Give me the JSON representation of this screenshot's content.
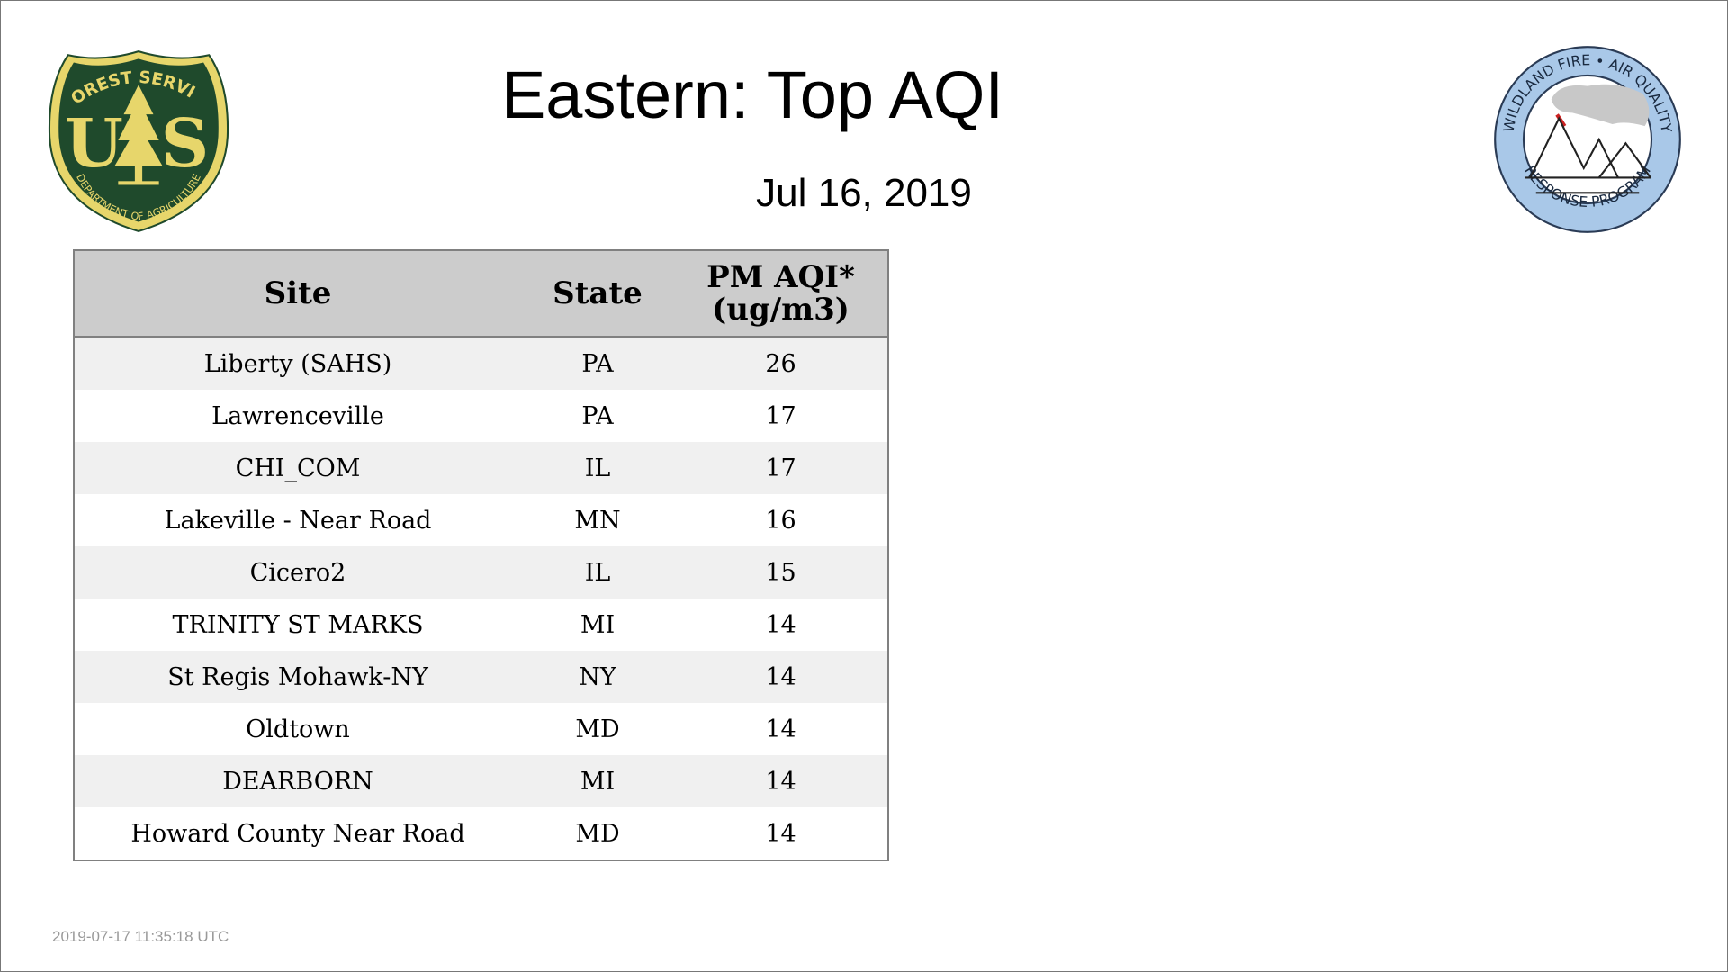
{
  "title": "Eastern: Top AQI",
  "subtitle": "Jul 16, 2019",
  "timestamp": "2019-07-17 11:35:18 UTC",
  "logos": {
    "left": {
      "icon": "forest-service-shield-icon",
      "top_text": "FOREST SERVICE",
      "letters_left": "U",
      "letters_right": "S",
      "bottom_text": "DEPARTMENT OF AGRICULTURE",
      "colors": {
        "green": "#1f4a2c",
        "gold": "#e7d66b"
      }
    },
    "right": {
      "icon": "wildland-fire-air-quality-seal-icon",
      "top_text": "WILDLAND FIRE • AIR QUALITY",
      "bottom_text": "RESPONSE PROGRAM",
      "colors": {
        "ring": "#a9c8e8",
        "smoke": "#c8c8c8",
        "fire": "#cc2222"
      }
    }
  },
  "table": {
    "headers": {
      "site": "Site",
      "state": "State",
      "aqi_line1": "PM AQI*",
      "aqi_line2": "(ug/m3)"
    },
    "rows": [
      {
        "site": "Liberty (SAHS)",
        "state": "PA",
        "aqi": "26"
      },
      {
        "site": "Lawrenceville",
        "state": "PA",
        "aqi": "17"
      },
      {
        "site": "CHI_COM",
        "state": "IL",
        "aqi": "17"
      },
      {
        "site": "Lakeville - Near Road",
        "state": "MN",
        "aqi": "16"
      },
      {
        "site": "Cicero2",
        "state": "IL",
        "aqi": "15"
      },
      {
        "site": "TRINITY ST MARKS",
        "state": "MI",
        "aqi": "14"
      },
      {
        "site": "St Regis Mohawk-NY",
        "state": "NY",
        "aqi": "14"
      },
      {
        "site": "Oldtown",
        "state": "MD",
        "aqi": "14"
      },
      {
        "site": "DEARBORN",
        "state": "MI",
        "aqi": "14"
      },
      {
        "site": "Howard County Near Road",
        "state": "MD",
        "aqi": "14"
      }
    ],
    "colors": {
      "header_bg": "#cccccc",
      "stripe": "#f0f0f0",
      "border": "#808080"
    }
  }
}
